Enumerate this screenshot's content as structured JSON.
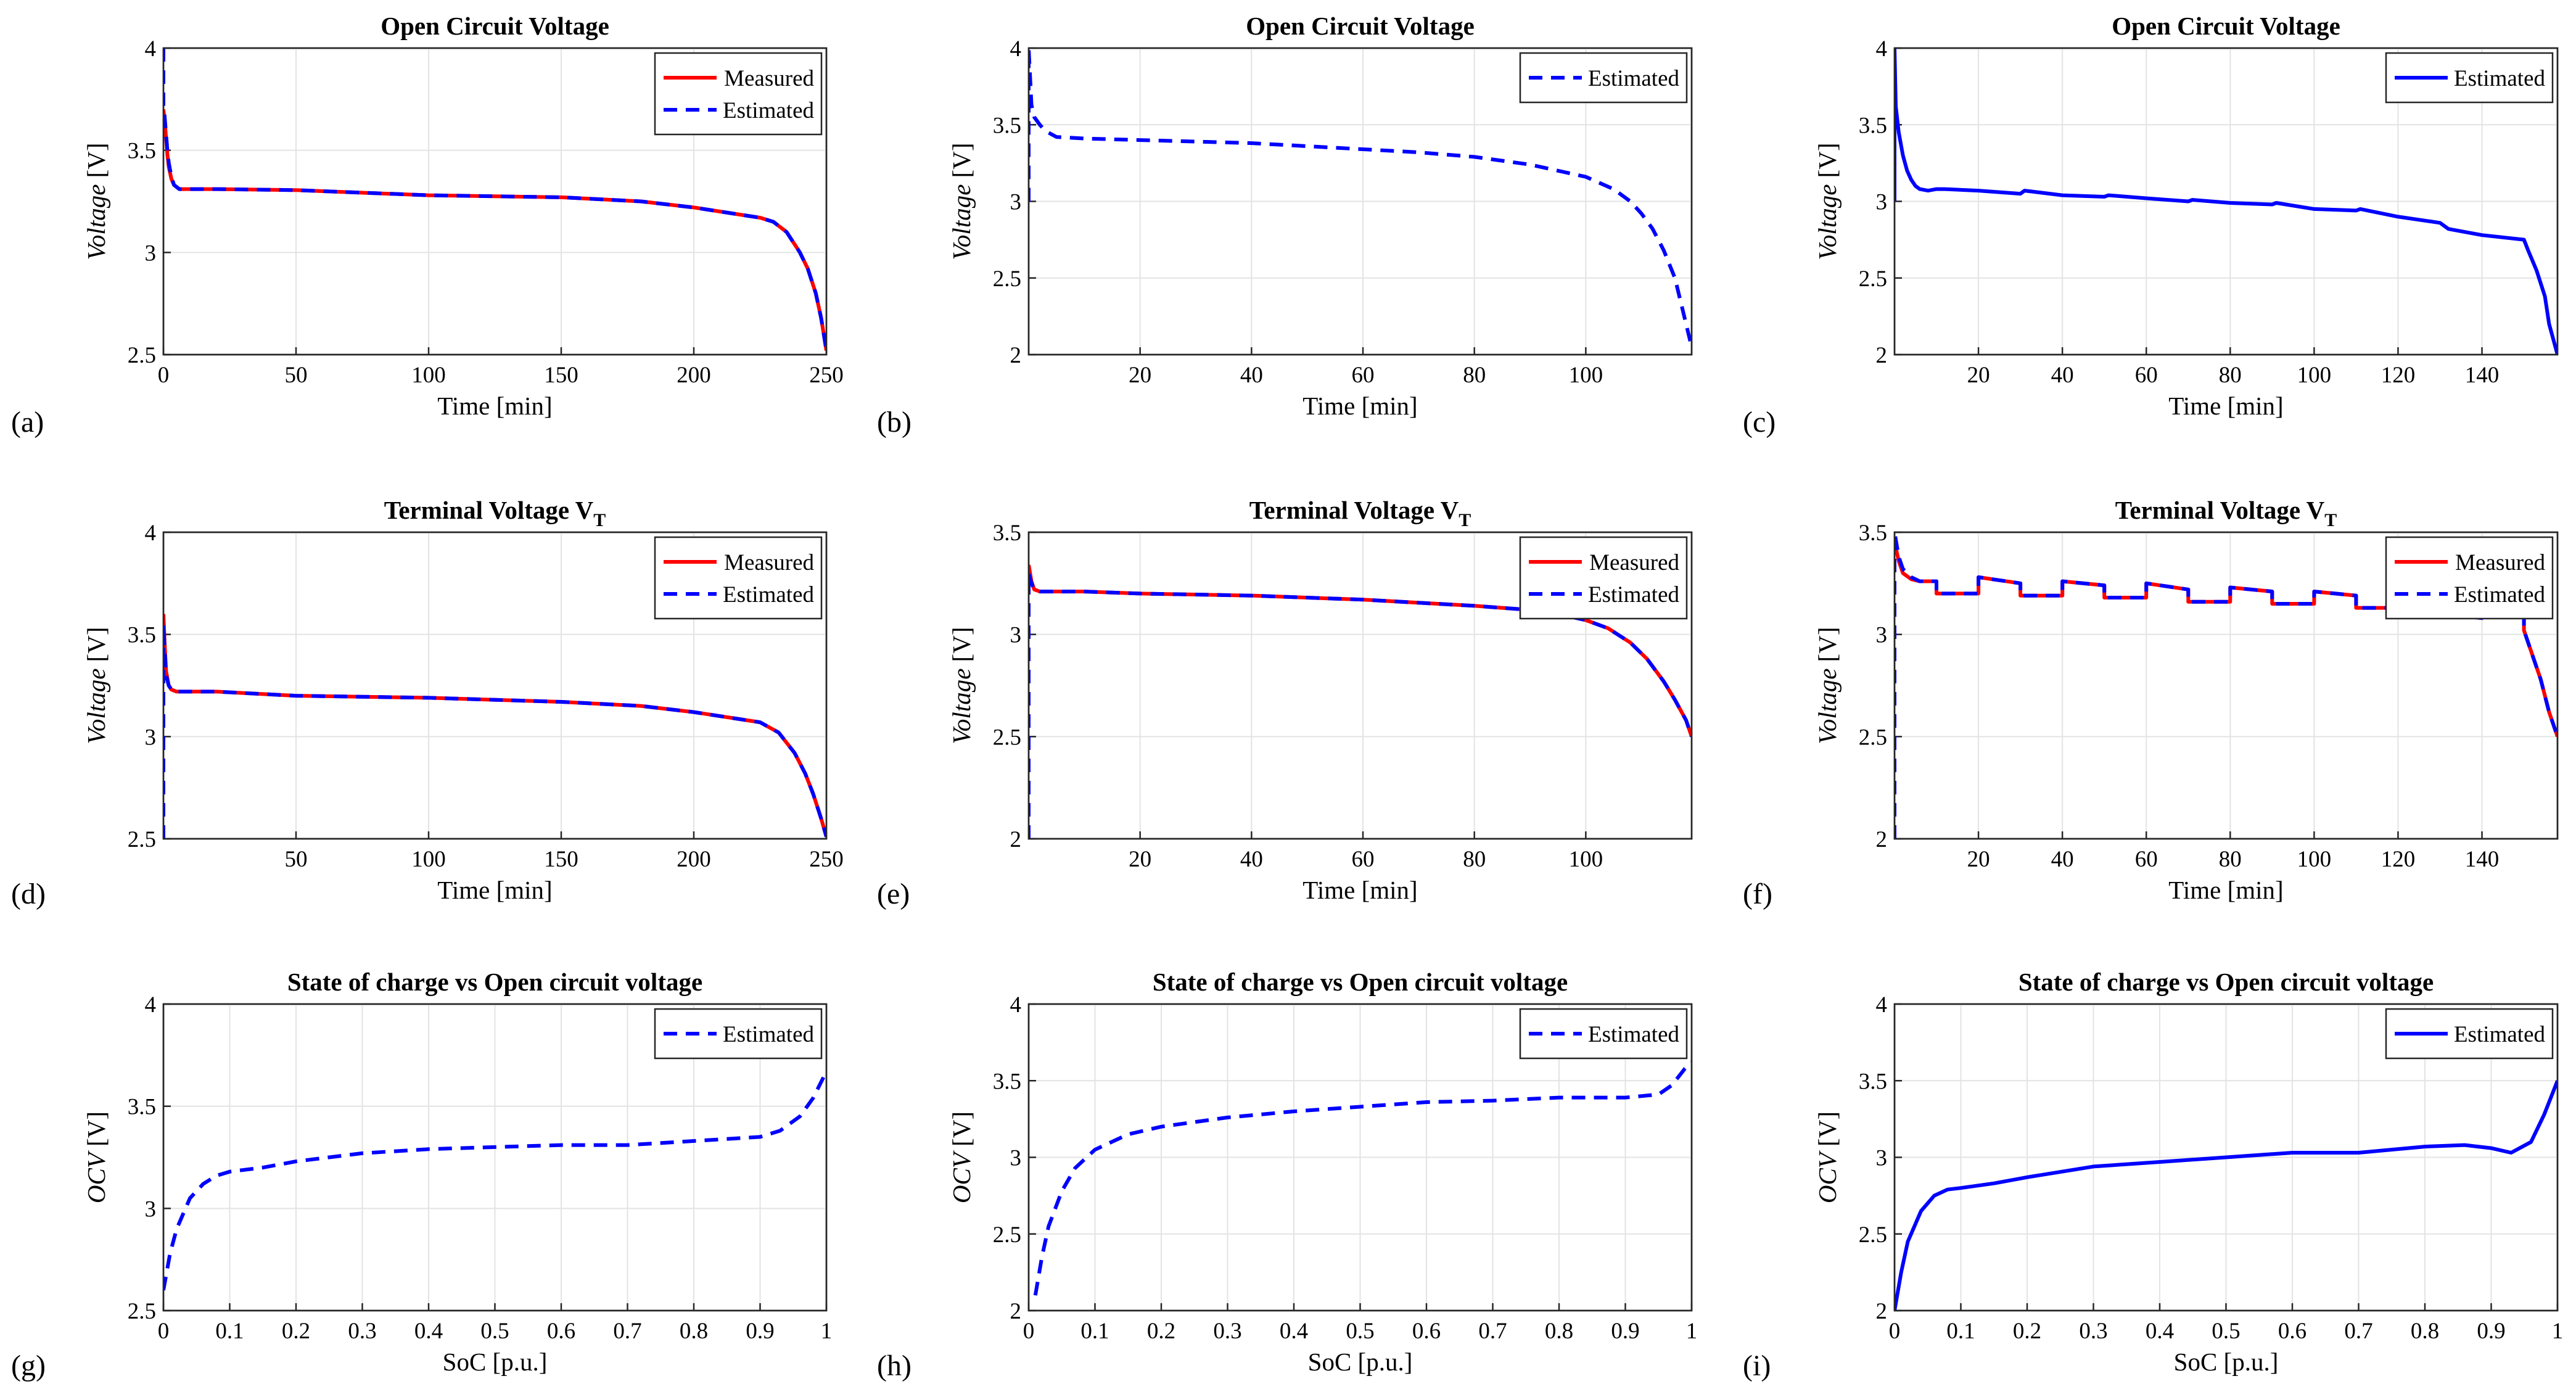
{
  "figure": {
    "panel_letters": [
      "(a)",
      "(b)",
      "(c)",
      "(d)",
      "(e)",
      "(f)",
      "(g)",
      "(h)",
      "(i)"
    ]
  },
  "colors": {
    "measured": "#ff0000",
    "estimated": "#0000ff",
    "grid": "#e3e3e3",
    "axes": "#262626"
  },
  "chart_data": [
    {
      "panel": "(a)",
      "type": "line",
      "title": "Open Circuit Voltage",
      "title_sub": "",
      "xlabel": "Time [min]",
      "ylabel_italic": "Voltage",
      "ylabel_unit": " [V]",
      "xlim": [
        0,
        250
      ],
      "ylim": [
        2.5,
        4
      ],
      "xticks": [
        0,
        50,
        100,
        150,
        200,
        250
      ],
      "yticks": [
        2.5,
        3,
        3.5,
        4
      ],
      "legend": "top-right",
      "series": [
        {
          "name": "Measured",
          "style": "solid",
          "color": "#ff0000",
          "width": 6,
          "x": [
            0,
            0.5,
            1,
            1.5,
            2,
            3,
            4,
            5,
            6,
            8,
            10,
            20,
            50,
            100,
            150,
            180,
            200,
            215,
            225,
            230,
            235,
            240,
            243,
            246,
            248,
            250
          ],
          "y": [
            3.7,
            3.64,
            3.56,
            3.48,
            3.42,
            3.36,
            3.33,
            3.32,
            3.31,
            3.31,
            3.31,
            3.31,
            3.305,
            3.28,
            3.27,
            3.25,
            3.22,
            3.19,
            3.17,
            3.15,
            3.1,
            3.0,
            2.92,
            2.8,
            2.68,
            2.52
          ]
        },
        {
          "name": "Estimated",
          "style": "dashed",
          "color": "#0000ff",
          "width": 6,
          "x": [
            0,
            0,
            0.3,
            0.5,
            1,
            1.5,
            2,
            3,
            4,
            5,
            6,
            8,
            10,
            20,
            50,
            100,
            150,
            180,
            200,
            215,
            225,
            230,
            235,
            240,
            243,
            246,
            248,
            250
          ],
          "y": [
            4.0,
            3.72,
            3.7,
            3.66,
            3.58,
            3.5,
            3.44,
            3.37,
            3.33,
            3.32,
            3.31,
            3.31,
            3.31,
            3.31,
            3.305,
            3.28,
            3.27,
            3.25,
            3.22,
            3.19,
            3.17,
            3.15,
            3.1,
            3.0,
            2.92,
            2.8,
            2.68,
            2.52
          ]
        }
      ]
    },
    {
      "panel": "(d)",
      "type": "line",
      "title": "Open Circuit Voltage",
      "title_sub": "",
      "xlabel": "Time [min]",
      "ylabel_italic": "Voltage",
      "ylabel_unit": " [V]",
      "xlim": [
        0,
        119
      ],
      "ylim": [
        2,
        4
      ],
      "xticks": [
        20,
        40,
        60,
        80,
        100
      ],
      "yticks": [
        2,
        2.5,
        3,
        3.5,
        4
      ],
      "legend": "top-right",
      "series": [
        {
          "name": "Estimated",
          "style": "dashed",
          "color": "#0000ff",
          "width": 6,
          "x": [
            0,
            0,
            0.5,
            1,
            2,
            3,
            4,
            5,
            10,
            20,
            40,
            60,
            70,
            80,
            90,
            100,
            105,
            108,
            110,
            112,
            114,
            116,
            118,
            119
          ],
          "y": [
            3.0,
            4.0,
            3.63,
            3.55,
            3.5,
            3.46,
            3.44,
            3.42,
            3.41,
            3.4,
            3.38,
            3.34,
            3.32,
            3.29,
            3.24,
            3.16,
            3.08,
            3.0,
            2.92,
            2.82,
            2.68,
            2.5,
            2.2,
            2.05
          ]
        }
      ]
    },
    {
      "panel": "(g)",
      "type": "line",
      "title": "Open Circuit Voltage",
      "title_sub": "",
      "xlabel": "Time [min]",
      "ylabel_italic": "Voltage",
      "ylabel_unit": " [V]",
      "xlim": [
        0,
        158
      ],
      "ylim": [
        2,
        4
      ],
      "xticks": [
        20,
        40,
        60,
        80,
        100,
        120,
        140
      ],
      "yticks": [
        2,
        2.5,
        3,
        3.5,
        4
      ],
      "legend": "top-right",
      "series": [
        {
          "name": "Estimated",
          "style": "solid",
          "color": "#0000ff",
          "width": 6,
          "x": [
            0,
            0,
            0.3,
            1,
            2,
            3,
            4,
            5,
            6,
            8,
            10,
            12,
            20,
            30,
            31,
            40,
            50,
            51,
            60,
            70,
            71,
            80,
            90,
            91,
            100,
            110,
            111,
            120,
            130,
            132,
            140,
            150,
            151,
            153,
            155,
            156,
            158
          ],
          "y": [
            3.0,
            4.0,
            3.62,
            3.45,
            3.3,
            3.2,
            3.14,
            3.1,
            3.08,
            3.07,
            3.08,
            3.08,
            3.07,
            3.05,
            3.07,
            3.04,
            3.03,
            3.04,
            3.02,
            3.0,
            3.01,
            2.99,
            2.98,
            2.99,
            2.95,
            2.94,
            2.95,
            2.9,
            2.86,
            2.82,
            2.78,
            2.75,
            2.68,
            2.55,
            2.38,
            2.2,
            2.0
          ]
        }
      ]
    },
    {
      "panel": "(b)",
      "type": "line",
      "title": "Terminal Voltage V",
      "title_sub": "T",
      "xlabel": "Time [min]",
      "ylabel_italic": "Voltage",
      "ylabel_unit": " [V]",
      "xlim": [
        0,
        250
      ],
      "ylim": [
        2.5,
        4
      ],
      "xticks": [
        50,
        100,
        150,
        200,
        250
      ],
      "yticks": [
        2.5,
        3,
        3.5,
        4
      ],
      "legend": "top-right",
      "series": [
        {
          "name": "Measured",
          "style": "solid",
          "color": "#ff0000",
          "width": 6,
          "x": [
            0,
            0.5,
            1,
            2,
            3,
            4,
            5,
            8,
            20,
            50,
            100,
            150,
            180,
            200,
            215,
            225,
            232,
            238,
            242,
            245,
            248,
            250
          ],
          "y": [
            3.6,
            3.45,
            3.32,
            3.25,
            3.23,
            3.225,
            3.22,
            3.22,
            3.22,
            3.2,
            3.19,
            3.17,
            3.15,
            3.12,
            3.09,
            3.07,
            3.02,
            2.92,
            2.82,
            2.72,
            2.6,
            2.51
          ]
        },
        {
          "name": "Estimated",
          "style": "dashed",
          "color": "#0000ff",
          "width": 6,
          "x": [
            0,
            0,
            0.5,
            1,
            2,
            3,
            4,
            5,
            8,
            20,
            50,
            100,
            150,
            180,
            200,
            215,
            225,
            232,
            238,
            242,
            245,
            248,
            250
          ],
          "y": [
            2.5,
            3.55,
            3.42,
            3.3,
            3.25,
            3.23,
            3.225,
            3.22,
            3.22,
            3.22,
            3.2,
            3.19,
            3.17,
            3.15,
            3.12,
            3.09,
            3.07,
            3.02,
            2.92,
            2.82,
            2.72,
            2.6,
            2.51
          ]
        }
      ]
    },
    {
      "panel": "(e)",
      "type": "line",
      "title": "Terminal Voltage V",
      "title_sub": "T",
      "xlabel": "Time [min]",
      "ylabel_italic": "Voltage",
      "ylabel_unit": " [V]",
      "xlim": [
        0,
        119
      ],
      "ylim": [
        2,
        3.5
      ],
      "xticks": [
        20,
        40,
        60,
        80,
        100
      ],
      "yticks": [
        2,
        2.5,
        3,
        3.5
      ],
      "legend": "top-right",
      "series": [
        {
          "name": "Measured",
          "style": "solid",
          "color": "#ff0000",
          "width": 6,
          "x": [
            0,
            0.5,
            1,
            2,
            3,
            5,
            10,
            20,
            40,
            60,
            80,
            90,
            95,
            100,
            104,
            108,
            111,
            114,
            116,
            118,
            119
          ],
          "y": [
            3.34,
            3.26,
            3.22,
            3.21,
            3.21,
            3.21,
            3.21,
            3.2,
            3.19,
            3.17,
            3.14,
            3.12,
            3.1,
            3.07,
            3.03,
            2.96,
            2.88,
            2.77,
            2.68,
            2.58,
            2.5
          ]
        },
        {
          "name": "Estimated",
          "style": "dashed",
          "color": "#0000ff",
          "width": 6,
          "x": [
            0,
            0,
            0.5,
            1,
            2,
            3,
            5,
            10,
            20,
            40,
            60,
            80,
            90,
            95,
            100,
            104,
            108,
            111,
            114,
            116,
            118,
            119
          ],
          "y": [
            2.0,
            3.3,
            3.25,
            3.22,
            3.21,
            3.21,
            3.21,
            3.21,
            3.2,
            3.19,
            3.17,
            3.14,
            3.12,
            3.1,
            3.07,
            3.03,
            2.96,
            2.88,
            2.77,
            2.68,
            2.58,
            2.5
          ]
        }
      ]
    },
    {
      "panel": "(h)",
      "type": "line",
      "title": "Terminal Voltage V",
      "title_sub": "T",
      "xlabel": "Time [min]",
      "ylabel_italic": "Voltage",
      "ylabel_unit": " [V]",
      "xlim": [
        0,
        158
      ],
      "ylim": [
        2,
        3.5
      ],
      "xticks": [
        20,
        40,
        60,
        80,
        100,
        120,
        140
      ],
      "yticks": [
        2,
        2.5,
        3,
        3.5
      ],
      "legend": "top-right",
      "series": [
        {
          "name": "Measured",
          "style": "solid",
          "color": "#ff0000",
          "width": 6,
          "x": [
            0,
            1,
            2,
            4,
            6,
            10,
            10,
            20,
            20,
            30,
            30,
            40,
            40,
            50,
            50,
            60,
            60,
            70,
            70,
            80,
            80,
            90,
            90,
            100,
            100,
            110,
            110,
            120,
            120,
            130,
            130,
            140,
            140,
            150,
            150,
            152,
            154,
            156,
            158
          ],
          "y": [
            3.45,
            3.36,
            3.3,
            3.27,
            3.26,
            3.26,
            3.2,
            3.2,
            3.28,
            3.25,
            3.19,
            3.19,
            3.26,
            3.24,
            3.18,
            3.18,
            3.25,
            3.22,
            3.16,
            3.16,
            3.23,
            3.21,
            3.15,
            3.15,
            3.21,
            3.19,
            3.13,
            3.13,
            3.19,
            3.17,
            3.1,
            3.08,
            3.14,
            3.1,
            3.02,
            2.9,
            2.78,
            2.62,
            2.5
          ]
        },
        {
          "name": "Estimated",
          "style": "dashed",
          "color": "#0000ff",
          "width": 6,
          "x": [
            0,
            0,
            1,
            2,
            4,
            6,
            10,
            10,
            20,
            20,
            30,
            30,
            40,
            40,
            50,
            50,
            60,
            60,
            70,
            70,
            80,
            80,
            90,
            90,
            100,
            100,
            110,
            110,
            120,
            120,
            130,
            130,
            140,
            140,
            150,
            150,
            152,
            154,
            156,
            158
          ],
          "y": [
            2.0,
            3.5,
            3.38,
            3.32,
            3.28,
            3.26,
            3.26,
            3.2,
            3.2,
            3.28,
            3.25,
            3.19,
            3.19,
            3.26,
            3.24,
            3.18,
            3.18,
            3.25,
            3.22,
            3.16,
            3.16,
            3.23,
            3.21,
            3.15,
            3.15,
            3.21,
            3.19,
            3.13,
            3.13,
            3.19,
            3.17,
            3.1,
            3.08,
            3.14,
            3.1,
            3.02,
            2.9,
            2.78,
            2.62,
            2.5
          ]
        }
      ]
    },
    {
      "panel": "(c)",
      "type": "line",
      "title": "State of charge vs Open circuit voltage",
      "title_sub": "",
      "xlabel": "SoC [p.u.]",
      "ylabel_italic": "OCV",
      "ylabel_unit": " [V]",
      "xlim": [
        0,
        1
      ],
      "ylim": [
        2.5,
        4
      ],
      "xticks": [
        0,
        0.1,
        0.2,
        0.3,
        0.4,
        0.5,
        0.6,
        0.7,
        0.8,
        0.9,
        1
      ],
      "yticks": [
        2.5,
        3,
        3.5,
        4
      ],
      "legend": "top-right",
      "series": [
        {
          "name": "Estimated",
          "style": "dashed",
          "color": "#0000ff",
          "width": 6,
          "x": [
            0,
            0.01,
            0.02,
            0.04,
            0.06,
            0.08,
            0.1,
            0.15,
            0.2,
            0.3,
            0.4,
            0.5,
            0.6,
            0.7,
            0.8,
            0.9,
            0.93,
            0.96,
            0.98,
            1.0
          ],
          "y": [
            2.6,
            2.78,
            2.9,
            3.05,
            3.12,
            3.16,
            3.18,
            3.2,
            3.23,
            3.27,
            3.29,
            3.3,
            3.31,
            3.31,
            3.33,
            3.35,
            3.38,
            3.45,
            3.54,
            3.67
          ]
        }
      ]
    },
    {
      "panel": "(f)",
      "type": "line",
      "title": "State of charge vs Open circuit voltage",
      "title_sub": "",
      "xlabel": "SoC [p.u.]",
      "ylabel_italic": "OCV",
      "ylabel_unit": " [V]",
      "xlim": [
        0,
        1
      ],
      "ylim": [
        2,
        4
      ],
      "xticks": [
        0,
        0.1,
        0.2,
        0.3,
        0.4,
        0.5,
        0.6,
        0.7,
        0.8,
        0.9,
        1
      ],
      "yticks": [
        2,
        2.5,
        3,
        3.5,
        4
      ],
      "legend": "top-right",
      "series": [
        {
          "name": "Estimated",
          "style": "dashed",
          "color": "#0000ff",
          "width": 6,
          "x": [
            0.01,
            0.02,
            0.03,
            0.05,
            0.07,
            0.1,
            0.15,
            0.2,
            0.3,
            0.4,
            0.5,
            0.6,
            0.7,
            0.8,
            0.9,
            0.95,
            0.97,
            0.99,
            1.0
          ],
          "y": [
            2.1,
            2.35,
            2.55,
            2.78,
            2.93,
            3.05,
            3.15,
            3.2,
            3.26,
            3.3,
            3.33,
            3.36,
            3.37,
            3.39,
            3.39,
            3.41,
            3.47,
            3.58,
            3.62
          ]
        }
      ]
    },
    {
      "panel": "(i)",
      "type": "line",
      "title": "State of charge vs Open circuit voltage",
      "title_sub": "",
      "xlabel": "SoC [p.u.]",
      "ylabel_italic": "OCV",
      "ylabel_unit": " [V]",
      "xlim": [
        0,
        1
      ],
      "ylim": [
        2,
        4
      ],
      "xticks": [
        0,
        0.1,
        0.2,
        0.3,
        0.4,
        0.5,
        0.6,
        0.7,
        0.8,
        0.9,
        1
      ],
      "yticks": [
        2,
        2.5,
        3,
        3.5,
        4
      ],
      "legend": "top-right",
      "series": [
        {
          "name": "Estimated",
          "style": "solid",
          "color": "#0000ff",
          "width": 6,
          "x": [
            0,
            0.01,
            0.02,
            0.04,
            0.06,
            0.08,
            0.1,
            0.15,
            0.2,
            0.3,
            0.4,
            0.5,
            0.6,
            0.7,
            0.8,
            0.86,
            0.9,
            0.93,
            0.96,
            0.98,
            1.0
          ],
          "y": [
            2.0,
            2.25,
            2.45,
            2.65,
            2.75,
            2.79,
            2.8,
            2.83,
            2.87,
            2.94,
            2.97,
            3.0,
            3.03,
            3.03,
            3.07,
            3.08,
            3.06,
            3.03,
            3.1,
            3.28,
            3.5
          ]
        }
      ]
    }
  ]
}
